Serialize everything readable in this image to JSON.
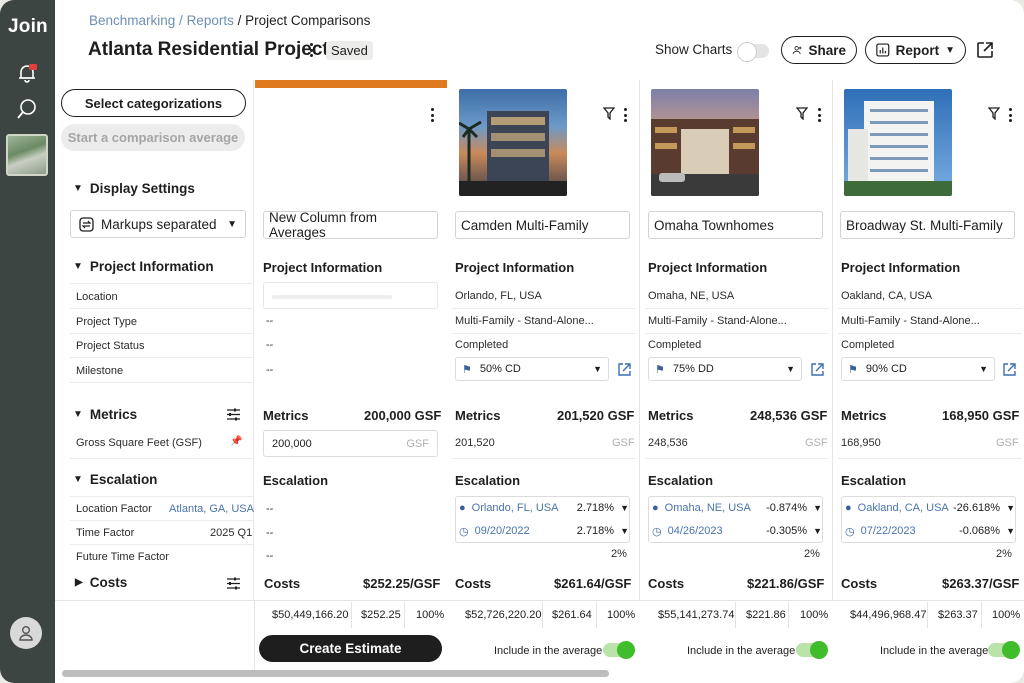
{
  "app": {
    "logo": "Join"
  },
  "breadcrumb": {
    "part1": "Benchmarking",
    "sep1": " / ",
    "part2": "Reports",
    "sep2": " / ",
    "current": "Project Comparisons"
  },
  "header": {
    "title": "Atlanta Residential Project",
    "saved": "Saved",
    "show_charts": "Show Charts",
    "share": "Share",
    "report": "Report"
  },
  "left": {
    "select_categorizations": "Select categorizations",
    "start_average": "Start a comparison average",
    "display_settings": "Display Settings",
    "markups": "Markups separated",
    "project_information": "Project Information",
    "rows": [
      "Location",
      "Project Type",
      "Project Status",
      "Milestone"
    ],
    "metrics": "Metrics",
    "gsf_label": "Gross Square Feet (GSF)",
    "escalation": "Escalation",
    "location_factor": "Location Factor",
    "location_factor_value": "Atlanta, GA, USA",
    "time_factor": "Time Factor",
    "time_factor_value": "2025 Q1",
    "future_time_factor": "Future Time Factor",
    "costs": "Costs"
  },
  "average_column": {
    "name": "New Column from Averages",
    "project_information": "Project Information",
    "dash": "--",
    "metrics": "Metrics",
    "metrics_value": "200,000 GSF",
    "gsf_input": "200,000",
    "gsf_unit": "GSF",
    "escalation": "Escalation",
    "costs": "Costs",
    "costs_value": "$252.25/GSF",
    "total": "$50,449,166.20",
    "per_gsf": "$252.25",
    "percent": "100%"
  },
  "projects": [
    {
      "name": "Camden Multi-Family",
      "location": "Orlando, FL, USA",
      "type": "Multi-Family - Stand-Alone...",
      "status": "Completed",
      "milestone": "50% CD",
      "metrics_value": "201,520 GSF",
      "gsf": "201,520",
      "gsf_unit": "GSF",
      "esc_location": "Orlando, FL, USA",
      "esc_location_pct": "2.718%",
      "esc_date": "09/20/2022",
      "esc_date_pct": "2.718%",
      "esc_future": "2%",
      "costs_value": "$261.64/GSF",
      "total": "$52,726,220.20",
      "per_gsf": "$261.64",
      "percent": "100%",
      "include": "Include in the average"
    },
    {
      "name": "Omaha Townhomes",
      "location": "Omaha, NE, USA",
      "type": "Multi-Family - Stand-Alone...",
      "status": "Completed",
      "milestone": "75% DD",
      "metrics_value": "248,536 GSF",
      "gsf": "248,536",
      "gsf_unit": "GSF",
      "esc_location": "Omaha, NE, USA",
      "esc_location_pct": "-0.874%",
      "esc_date": "04/26/2023",
      "esc_date_pct": "-0.305%",
      "esc_future": "2%",
      "costs_value": "$221.86/GSF",
      "total": "$55,141,273.74",
      "per_gsf": "$221.86",
      "percent": "100%",
      "include": "Include in the average"
    },
    {
      "name": "Broadway St. Multi-Family",
      "location": "Oakland, CA, USA",
      "type": "Multi-Family - Stand-Alone...",
      "status": "Completed",
      "milestone": "90% CD",
      "metrics_value": "168,950 GSF",
      "gsf": "168,950",
      "gsf_unit": "GSF",
      "esc_location": "Oakland, CA, USA",
      "esc_location_pct": "-26.618%",
      "esc_date": "07/22/2023",
      "esc_date_pct": "-0.068%",
      "esc_future": "2%",
      "costs_value": "$263.37/GSF",
      "total": "$44,496,968.47",
      "per_gsf": "$263.37",
      "percent": "100%",
      "include": "Include in the average"
    }
  ],
  "footer": {
    "create_estimate": "Create Estimate"
  },
  "colors": {
    "accent_orange": "#e07a1f",
    "link_blue": "#4a74ad",
    "toggle_green": "#3fbd2a",
    "nav_dark": "#3d4543"
  }
}
